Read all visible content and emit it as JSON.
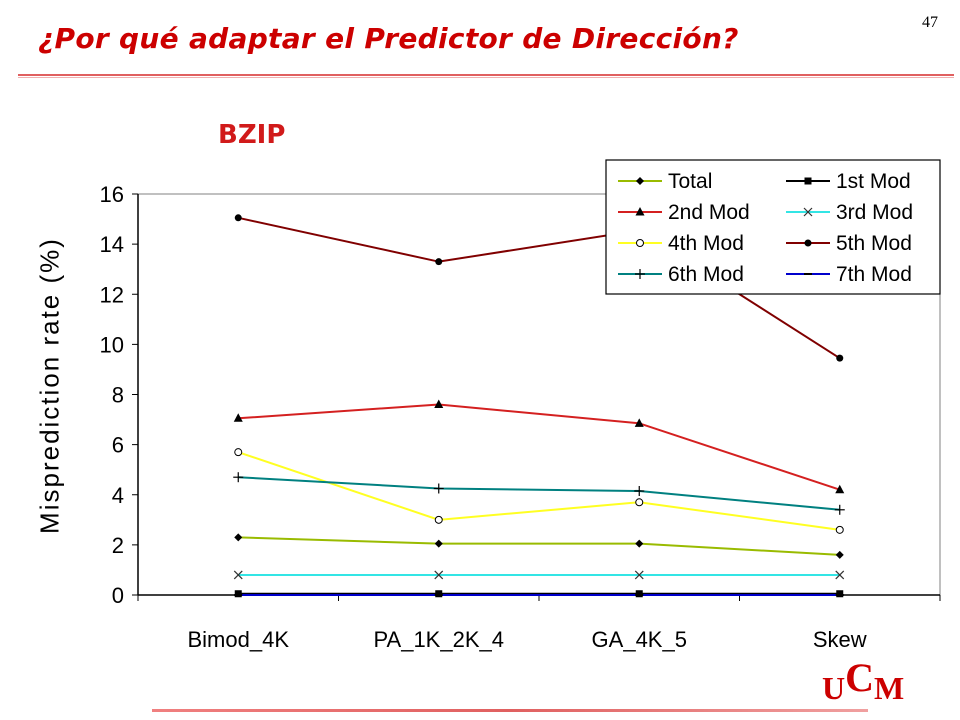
{
  "slide": {
    "page_number": "47",
    "title": "¿Por qué adaptar el Predictor de Dirección?"
  },
  "logo": {
    "part1": "U",
    "part2": "C",
    "part3": "M"
  },
  "chart_data": {
    "type": "line",
    "title": "BZIP",
    "xlabel": "",
    "ylabel": "Misprediction rate (%)",
    "categories": [
      "Bimod_4K",
      "PA_1K_2K_4",
      "GA_4K_5",
      "Skew"
    ],
    "ylim": [
      0,
      16
    ],
    "yticks": [
      0,
      2,
      4,
      6,
      8,
      10,
      12,
      14,
      16
    ],
    "grid": false,
    "legend_position": "top-right",
    "series": [
      {
        "name": "Total",
        "color": "#99bb00",
        "marker": "diamond",
        "values": [
          2.3,
          2.05,
          2.05,
          1.6
        ]
      },
      {
        "name": "1st Mod",
        "color": "#000000",
        "marker": "square",
        "values": [
          0.05,
          0.05,
          0.05,
          0.05
        ]
      },
      {
        "name": "2nd Mod",
        "color": "#d42020",
        "marker": "triangle",
        "values": [
          7.05,
          7.6,
          6.85,
          4.2
        ]
      },
      {
        "name": "3rd Mod",
        "color": "#33e5e5",
        "marker": "x",
        "values": [
          0.8,
          0.8,
          0.8,
          0.8
        ]
      },
      {
        "name": "4th Mod",
        "color": "#ffff22",
        "marker": "circle",
        "values": [
          5.7,
          3.0,
          3.7,
          2.6
        ]
      },
      {
        "name": "5th Mod",
        "color": "#800000",
        "marker": "dot",
        "values": [
          15.05,
          13.3,
          14.55,
          9.45
        ]
      },
      {
        "name": "6th Mod",
        "color": "#008080",
        "marker": "plus",
        "values": [
          4.7,
          4.25,
          4.15,
          3.4
        ]
      },
      {
        "name": "7th Mod",
        "color": "#0000cc",
        "marker": "dash",
        "values": [
          0.0,
          0.0,
          0.0,
          0.0
        ]
      }
    ]
  }
}
